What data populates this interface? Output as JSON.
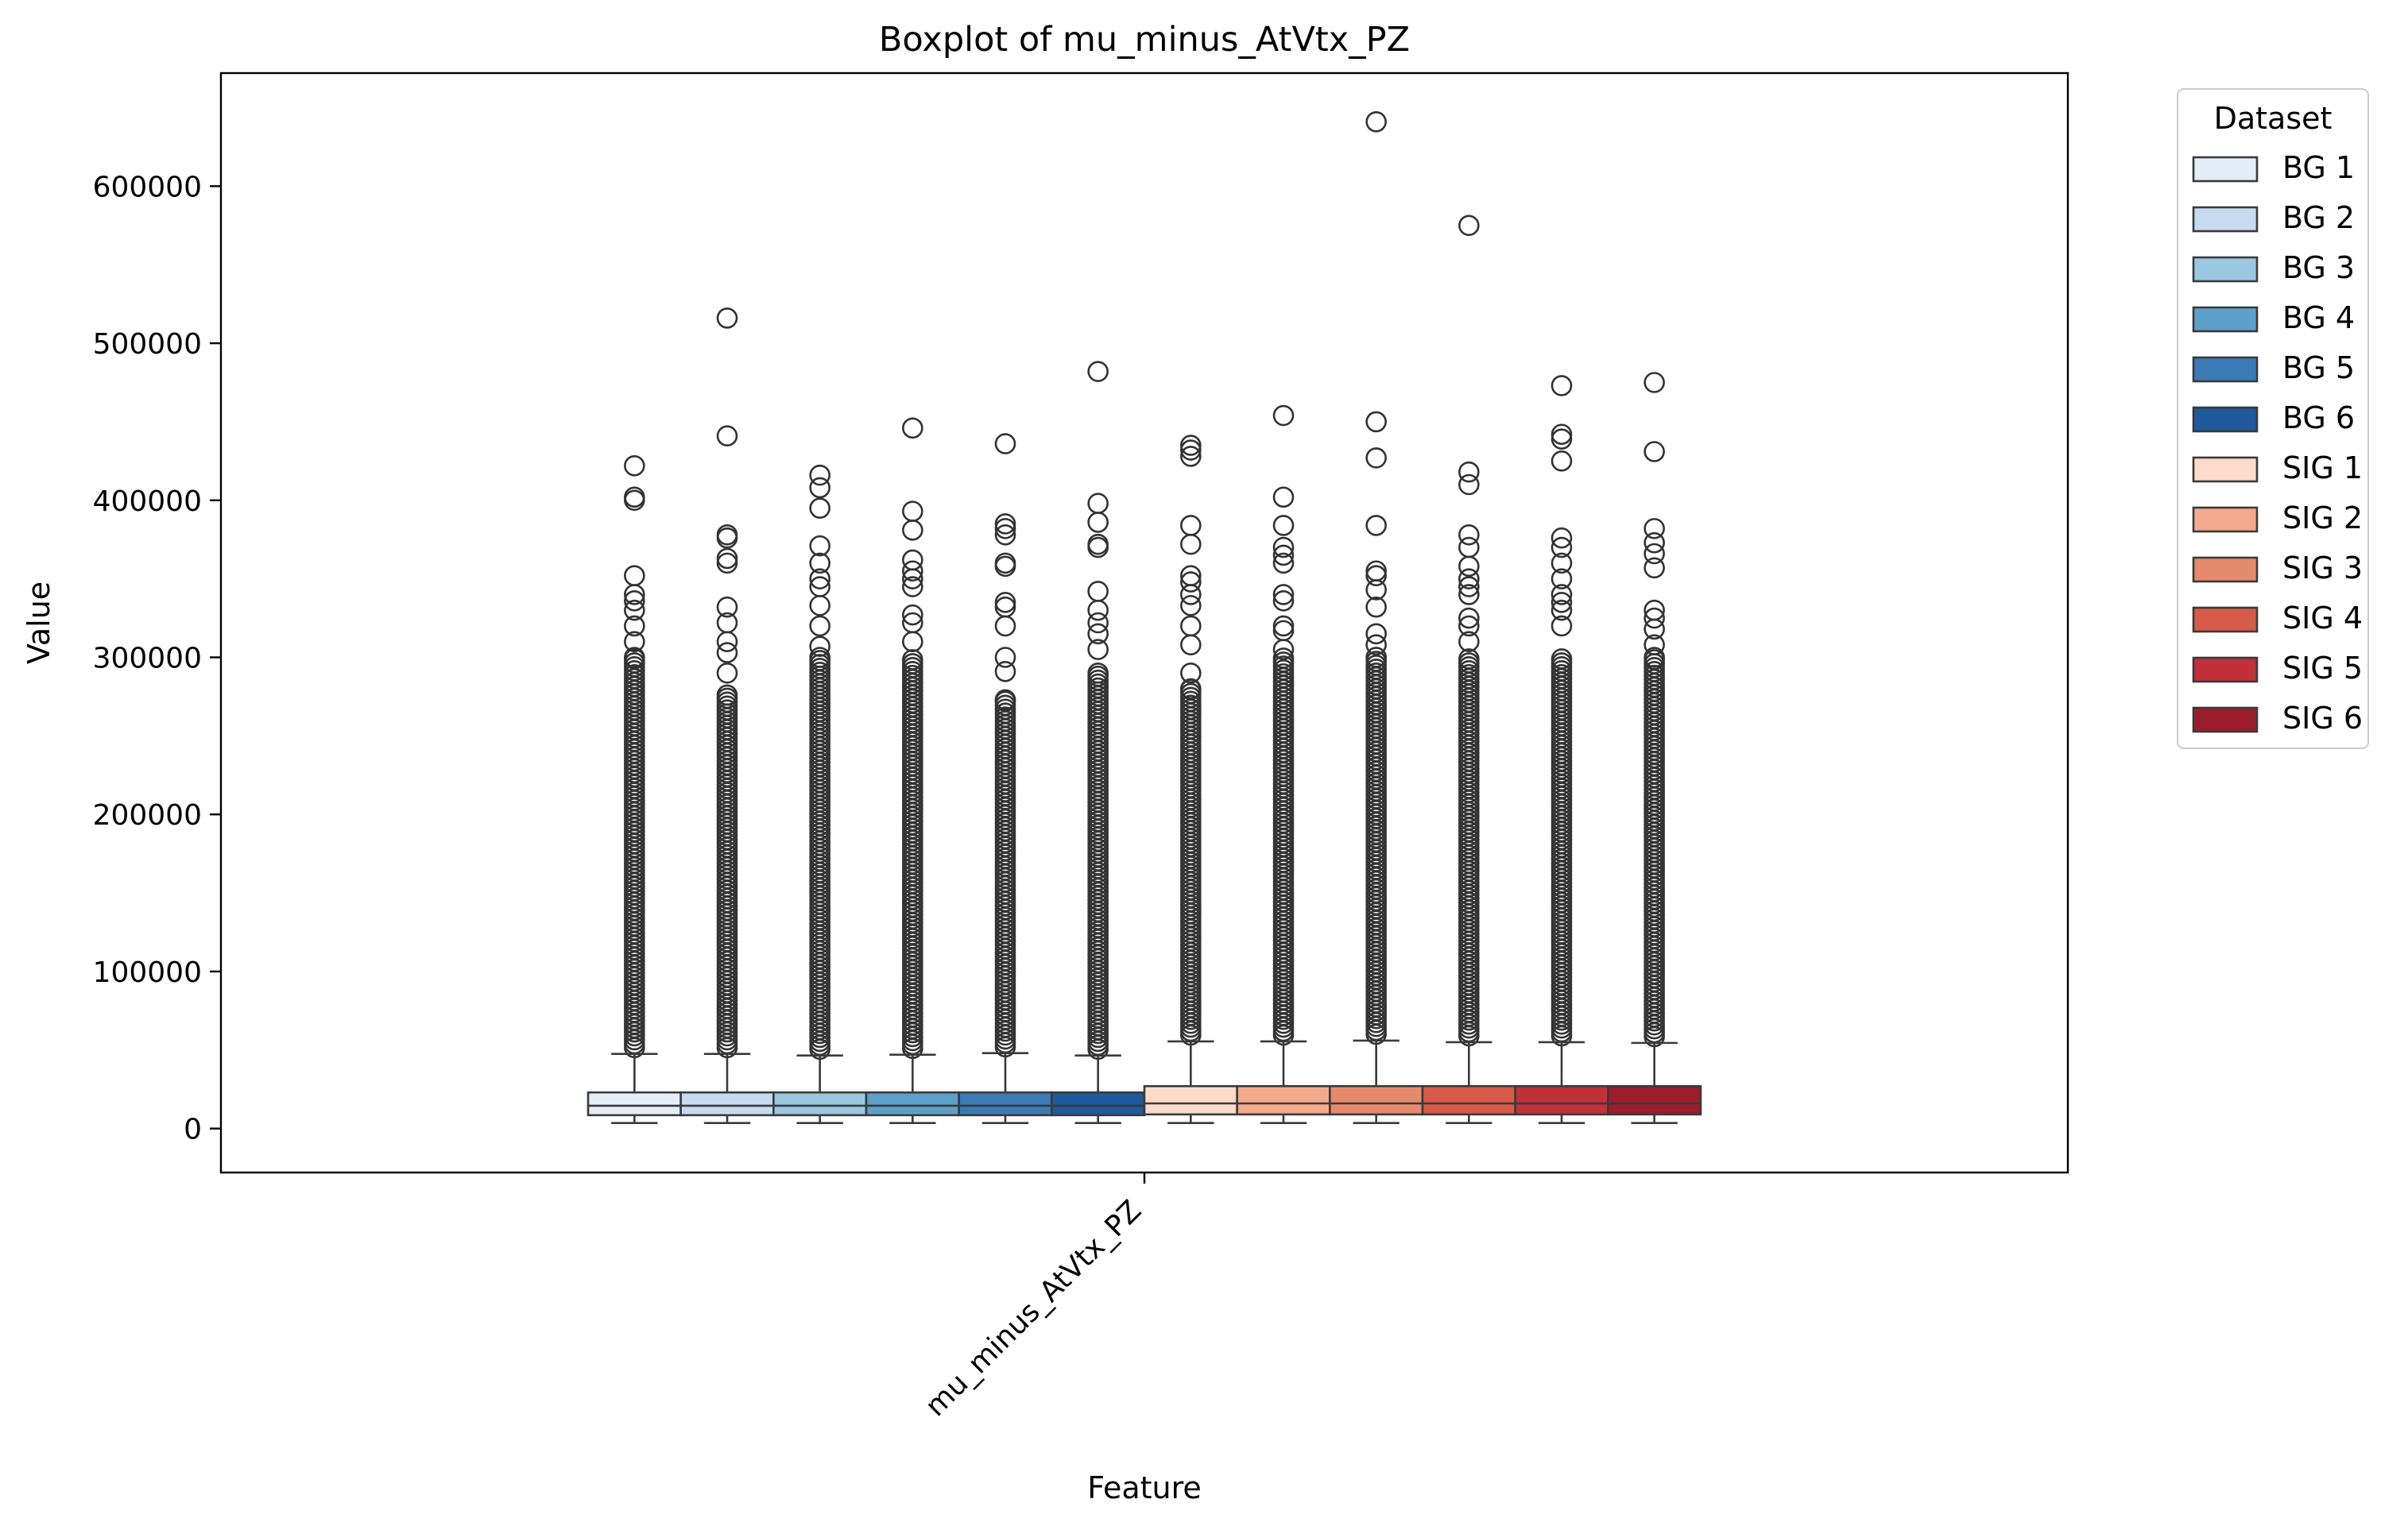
{
  "chart_data": {
    "type": "box",
    "title": "Boxplot of mu_minus_AtVtx_PZ",
    "xlabel": "Feature",
    "ylabel": "Value",
    "categories": [
      "mu_minus_AtVtx_PZ"
    ],
    "ylim": [
      -28000,
      672000
    ],
    "yticks": [
      0,
      100000,
      200000,
      300000,
      400000,
      500000,
      600000
    ],
    "ytick_labels": [
      "0",
      "100000",
      "200000",
      "300000",
      "400000",
      "500000",
      "600000"
    ],
    "grid": false,
    "legend": {
      "title": "Dataset",
      "placement": "outside upper-right"
    },
    "series": [
      {
        "name": "BG 1",
        "color": "#e3eef9",
        "q1": 8500,
        "median": 14500,
        "q3": 23000,
        "whisker_low": 3500,
        "whisker_high": 47500,
        "outliers": [
          422000,
          402000,
          400000,
          352000,
          340000,
          336000,
          330000,
          320000,
          310000,
          300000
        ]
      },
      {
        "name": "BG 2",
        "color": "#c6dbef",
        "q1": 8500,
        "median": 14500,
        "q3": 23000,
        "whisker_low": 3500,
        "whisker_high": 47500,
        "outliers": [
          516000,
          441000,
          378000,
          376000,
          363000,
          360000,
          332000,
          322000,
          310000,
          303000,
          290000,
          276000
        ]
      },
      {
        "name": "BG 3",
        "color": "#9ac8e0",
        "q1": 8500,
        "median": 14500,
        "q3": 23000,
        "whisker_low": 3500,
        "whisker_high": 46500,
        "outliers": [
          416000,
          408000,
          395000,
          371000,
          360000,
          350000,
          345000,
          333000,
          320000,
          307000,
          300000
        ]
      },
      {
        "name": "BG 4",
        "color": "#5da0cb",
        "q1": 8500,
        "median": 14500,
        "q3": 23000,
        "whisker_low": 3500,
        "whisker_high": 47000,
        "outliers": [
          446000,
          393000,
          381000,
          362000,
          355000,
          350000,
          345000,
          327000,
          322000,
          310000
        ]
      },
      {
        "name": "BG 5",
        "color": "#3a7bb5",
        "q1": 8500,
        "median": 14500,
        "q3": 23000,
        "whisker_low": 3500,
        "whisker_high": 48000,
        "outliers": [
          436000,
          385000,
          382000,
          378000,
          360000,
          358000,
          335000,
          332000,
          320000,
          300000,
          291000,
          273000
        ]
      },
      {
        "name": "BG 6",
        "color": "#1f5a9c",
        "q1": 8500,
        "median": 14500,
        "q3": 23000,
        "whisker_low": 3500,
        "whisker_high": 46500,
        "outliers": [
          482000,
          398000,
          386000,
          372000,
          370000,
          342000,
          330000,
          322000,
          315000,
          305000,
          290000
        ]
      },
      {
        "name": "SIG 1",
        "color": "#fddbcb",
        "q1": 9000,
        "median": 16000,
        "q3": 27000,
        "whisker_low": 3500,
        "whisker_high": 55500,
        "outliers": [
          435000,
          432000,
          428000,
          384000,
          372000,
          352000,
          348000,
          340000,
          333000,
          320000,
          308000,
          290000,
          280000
        ]
      },
      {
        "name": "SIG 2",
        "color": "#f4aa8c",
        "q1": 9000,
        "median": 16000,
        "q3": 27000,
        "whisker_low": 3500,
        "whisker_high": 55500,
        "outliers": [
          454000,
          402000,
          384000,
          370000,
          365000,
          360000,
          340000,
          336000,
          320000,
          317000,
          305000
        ]
      },
      {
        "name": "SIG 3",
        "color": "#e68a6e",
        "q1": 9000,
        "median": 16000,
        "q3": 27000,
        "whisker_low": 3500,
        "whisker_high": 56000,
        "outliers": [
          641000,
          450000,
          427000,
          384000,
          355000,
          352000,
          343000,
          332000,
          315000,
          308000,
          300000
        ]
      },
      {
        "name": "SIG 4",
        "color": "#d85a49",
        "q1": 9000,
        "median": 16000,
        "q3": 27000,
        "whisker_low": 3500,
        "whisker_high": 55000,
        "outliers": [
          575000,
          418000,
          410000,
          378000,
          370000,
          358000,
          350000,
          345000,
          340000,
          325000,
          320000,
          310000
        ]
      },
      {
        "name": "SIG 5",
        "color": "#c0313a",
        "q1": 9000,
        "median": 16000,
        "q3": 27000,
        "whisker_low": 3500,
        "whisker_high": 55000,
        "outliers": [
          473000,
          442000,
          439000,
          425000,
          376000,
          370000,
          360000,
          350000,
          340000,
          335000,
          330000,
          320000
        ]
      },
      {
        "name": "SIG 6",
        "color": "#9b1d2c",
        "q1": 9000,
        "median": 16000,
        "q3": 27000,
        "whisker_low": 3500,
        "whisker_high": 54500,
        "outliers": [
          475000,
          431000,
          382000,
          373000,
          366000,
          357000,
          330000,
          325000,
          318000,
          308000,
          300000
        ]
      }
    ]
  }
}
